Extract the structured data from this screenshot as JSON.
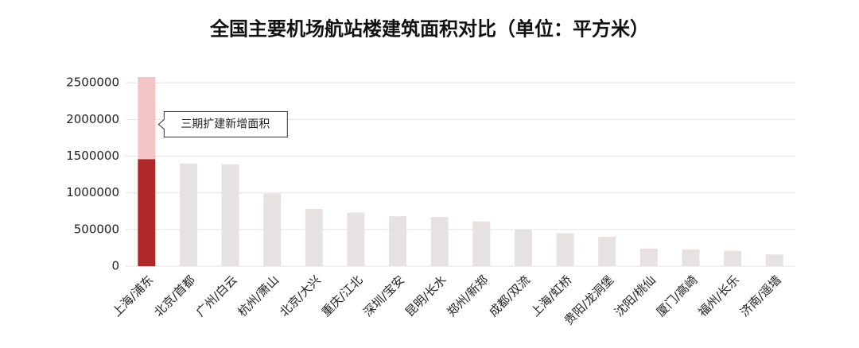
{
  "chart_data": {
    "type": "bar",
    "title": "全国主要机场航站楼建筑面积对比（单位：平方米）",
    "categories": [
      "上海/浦东",
      "北京/首都",
      "广州/白云",
      "杭州/萧山",
      "北京/大兴",
      "重庆/江北",
      "深圳/宝安",
      "昆明/长水",
      "郑州/新郑",
      "成都/双流",
      "上海/虹桥",
      "贵阳/龙洞堡",
      "沈阳/桃仙",
      "厦门/高崎",
      "福州/长乐",
      "济南/遥墙"
    ],
    "series": [
      {
        "colors": [
          "#b0282a",
          "#e6e2e2",
          "#e6e2e2",
          "#e6e2e2",
          "#e6e2e2",
          "#e6e2e2",
          "#e6e2e2",
          "#e6e2e2",
          "#e6e2e2",
          "#e6e2e2",
          "#e6e2e2",
          "#e6e2e2",
          "#e6e2e2",
          "#e6e2e2",
          "#e6e2e2",
          "#e6e2e2"
        ],
        "values": [
          1460000,
          1400000,
          1390000,
          990000,
          780000,
          730000,
          680000,
          670000,
          610000,
          500000,
          450000,
          400000,
          240000,
          230000,
          210000,
          160000
        ]
      },
      {
        "name": "三期扩建新增面积",
        "color": "#f2c4c6",
        "values": [
          1120000,
          null,
          null,
          null,
          null,
          null,
          null,
          null,
          null,
          null,
          null,
          null,
          null,
          null,
          null,
          null
        ]
      }
    ],
    "ylim": [
      0,
      2600000
    ],
    "yticks": [
      0,
      500000,
      1000000,
      1500000,
      2000000,
      2500000
    ],
    "grid": true
  }
}
